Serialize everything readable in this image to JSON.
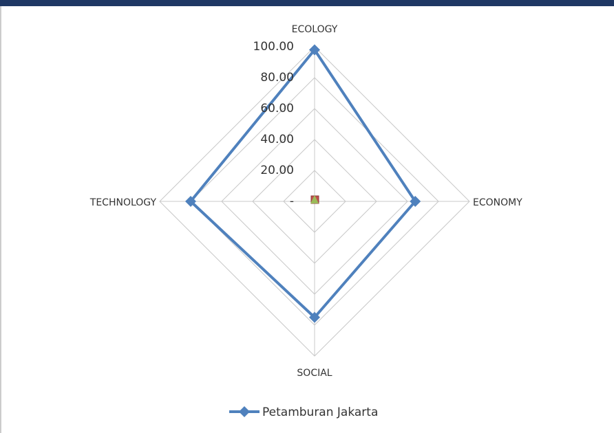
{
  "chart_data": {
    "type": "radar",
    "categories": [
      "ECOLOGY",
      "ECONOMY",
      "SOCIAL",
      "TECHNOLOGY"
    ],
    "series": [
      {
        "name": "Petamburan Jakarta",
        "color": "#4f81bd",
        "values": [
          98,
          65,
          75,
          80
        ]
      }
    ],
    "ylim": [
      0,
      100
    ],
    "yticks": [
      {
        "value": 0,
        "label": "-"
      },
      {
        "value": 20,
        "label": "20.00"
      },
      {
        "value": 40,
        "label": "40.00"
      },
      {
        "value": 60,
        "label": "60.00"
      },
      {
        "value": 80,
        "label": "80.00"
      },
      {
        "value": 100,
        "label": "100.00"
      }
    ],
    "grid": true,
    "legend": "bottom"
  }
}
